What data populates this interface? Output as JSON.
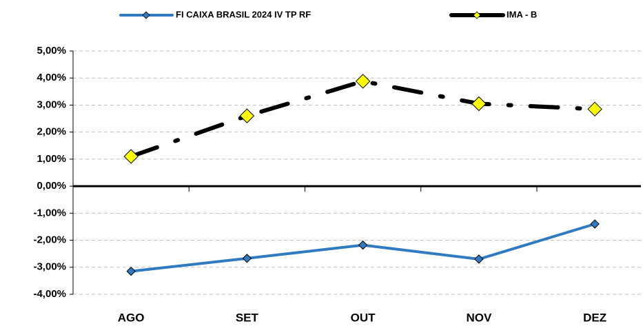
{
  "chart_data": {
    "type": "line",
    "categories": [
      "AGO",
      "SET",
      "OUT",
      "NOV",
      "DEZ"
    ],
    "series": [
      {
        "name": "FI CAIXA BRASIL 2024 IV TP RF",
        "color": "#2f7ac0",
        "marker_color": "#2f7ac0",
        "values": [
          -3.15,
          -2.67,
          -2.18,
          -2.7,
          -1.4
        ]
      },
      {
        "name": "IMA - B",
        "color": "#000000",
        "marker_color": "#ffff00",
        "values": [
          1.1,
          2.6,
          3.88,
          3.05,
          2.85
        ]
      }
    ],
    "ylim": [
      -4,
      5
    ],
    "yticks": [
      {
        "value": 5,
        "label": "5,00%"
      },
      {
        "value": 4,
        "label": "4,00%"
      },
      {
        "value": 3,
        "label": "3,00%"
      },
      {
        "value": 2,
        "label": "2,00%"
      },
      {
        "value": 1,
        "label": "1,00%"
      },
      {
        "value": 0,
        "label": "0,00%"
      },
      {
        "value": -1,
        "label": "-1,00%"
      },
      {
        "value": -2,
        "label": "-2,00%"
      },
      {
        "value": -3,
        "label": "-3,00%"
      },
      {
        "value": -4,
        "label": "-4,00%"
      }
    ],
    "grid": true,
    "legend": "top"
  }
}
